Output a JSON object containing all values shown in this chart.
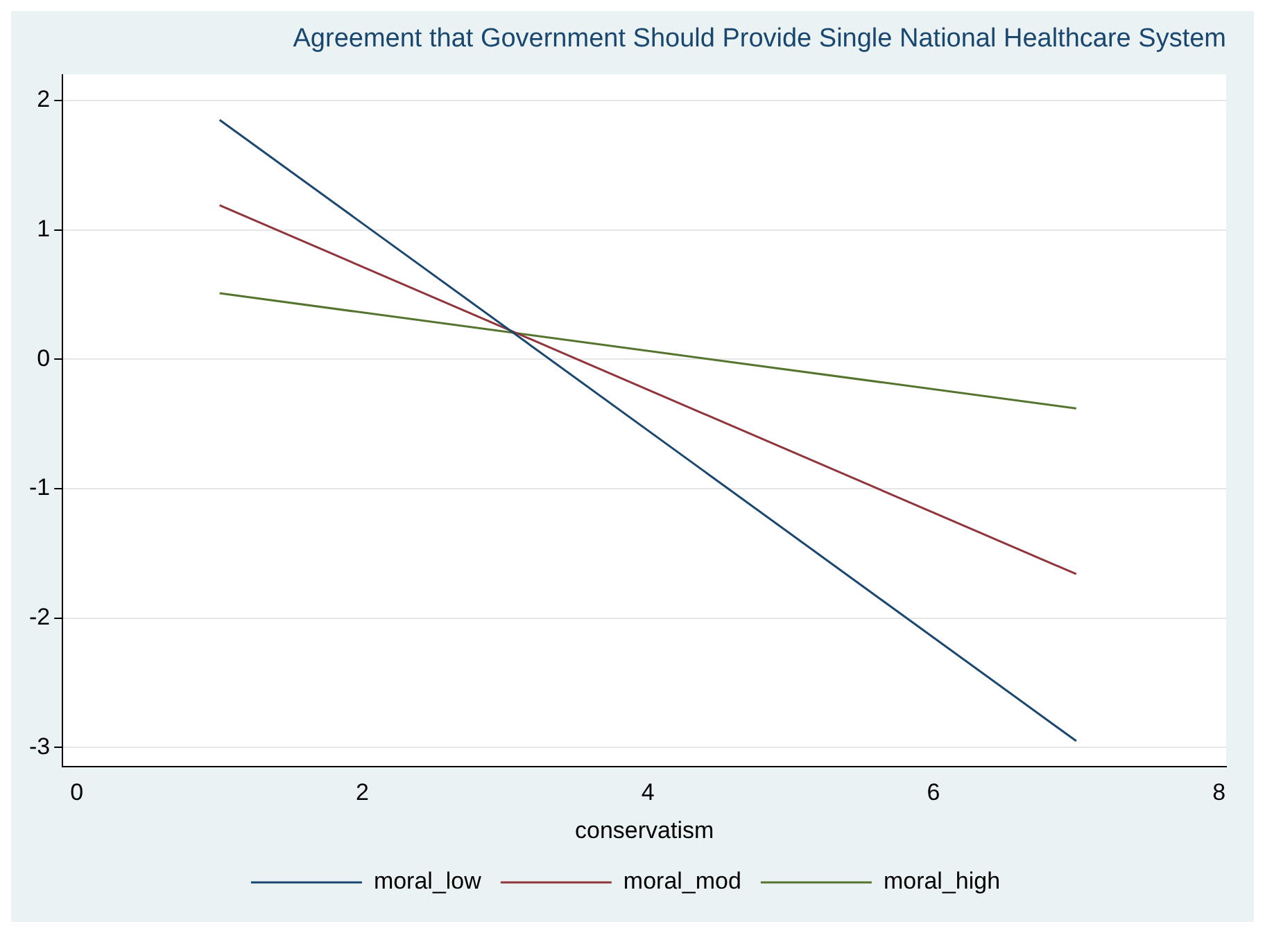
{
  "chart_data": {
    "type": "line",
    "title": "Agreement that Government Should Provide Single National Healthcare System",
    "xlabel": "conservatism",
    "x": [
      1,
      7
    ],
    "series": [
      {
        "name": "moral_low",
        "color": "#1a476f",
        "values": [
          1.85,
          -2.95
        ]
      },
      {
        "name": "moral_mod",
        "color": "#90353b",
        "values": [
          1.19,
          -1.66
        ]
      },
      {
        "name": "moral_high",
        "color": "#55752f",
        "values": [
          0.51,
          -0.38
        ]
      }
    ],
    "xlim": [
      -0.1,
      8.05
    ],
    "xticks": [
      0,
      2,
      4,
      6,
      8
    ],
    "ylim": [
      -3.15,
      2.2
    ],
    "yticks": [
      -3,
      -2,
      -1,
      0,
      1,
      2
    ],
    "grid": "y",
    "legend": "bottom",
    "marker": "none",
    "line_style": "solid"
  }
}
